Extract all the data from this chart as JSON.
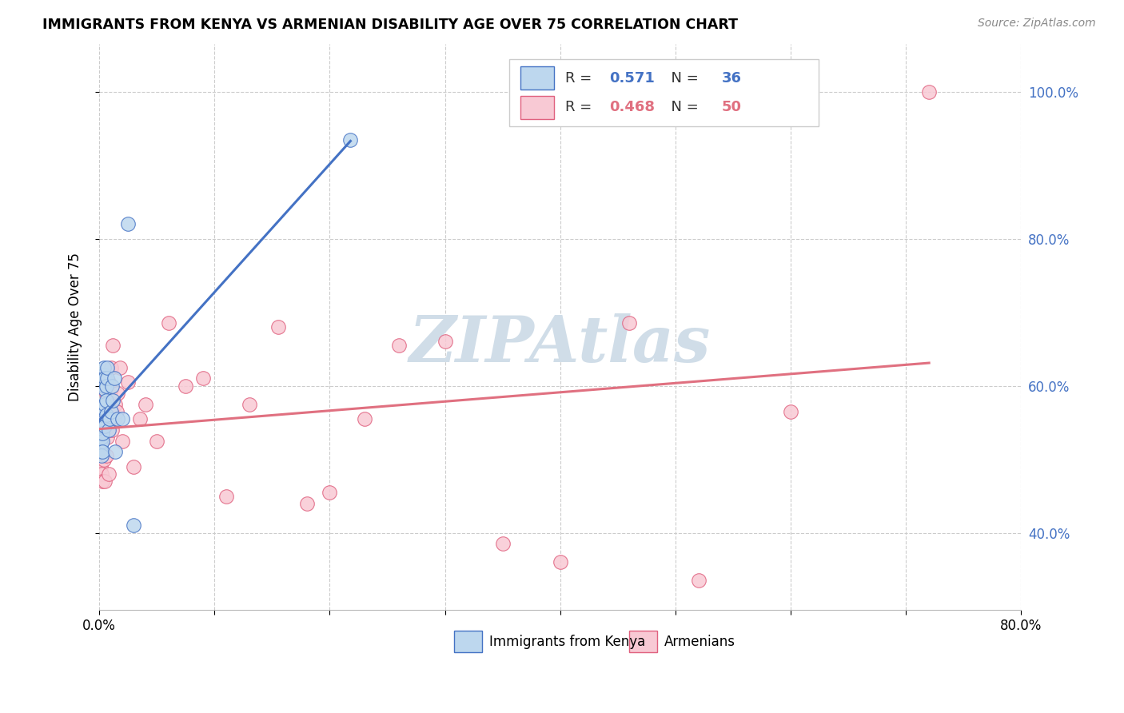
{
  "title": "IMMIGRANTS FROM KENYA VS ARMENIAN DISABILITY AGE OVER 75 CORRELATION CHART",
  "source": "Source: ZipAtlas.com",
  "ylabel": "Disability Age Over 75",
  "x_min": 0.0,
  "x_max": 0.8,
  "y_min": 0.295,
  "y_max": 1.065,
  "right_yticks": [
    0.4,
    0.6,
    0.8,
    1.0
  ],
  "kenya_R": 0.571,
  "kenya_N": 36,
  "armenian_R": 0.468,
  "armenian_N": 50,
  "kenya_fill": "#bdd7ee",
  "kenya_edge": "#4472c4",
  "armenian_fill": "#f8c9d4",
  "armenian_edge": "#e0607e",
  "trend_kenya": "#4472c4",
  "trend_armenian": "#e07080",
  "legend_text_kenya": "#4472c4",
  "legend_text_armenian": "#e07080",
  "background_color": "#ffffff",
  "grid_color": "#cccccc",
  "watermark_text": "ZIPAtlas",
  "watermark_color": "#d0dde8",
  "kenya_x": [
    0.001,
    0.001,
    0.001,
    0.002,
    0.002,
    0.002,
    0.002,
    0.003,
    0.003,
    0.003,
    0.003,
    0.003,
    0.004,
    0.004,
    0.004,
    0.005,
    0.005,
    0.005,
    0.005,
    0.006,
    0.006,
    0.006,
    0.007,
    0.007,
    0.008,
    0.009,
    0.01,
    0.011,
    0.012,
    0.013,
    0.014,
    0.016,
    0.02,
    0.025,
    0.218,
    0.03
  ],
  "kenya_y": [
    0.515,
    0.52,
    0.51,
    0.53,
    0.54,
    0.505,
    0.545,
    0.525,
    0.535,
    0.56,
    0.51,
    0.57,
    0.6,
    0.615,
    0.625,
    0.545,
    0.575,
    0.595,
    0.61,
    0.56,
    0.58,
    0.6,
    0.61,
    0.625,
    0.54,
    0.555,
    0.565,
    0.6,
    0.58,
    0.61,
    0.51,
    0.555,
    0.555,
    0.82,
    0.935,
    0.41
  ],
  "armenian_x": [
    0.001,
    0.001,
    0.002,
    0.002,
    0.003,
    0.003,
    0.003,
    0.004,
    0.004,
    0.005,
    0.005,
    0.006,
    0.006,
    0.007,
    0.007,
    0.008,
    0.008,
    0.009,
    0.01,
    0.01,
    0.011,
    0.012,
    0.013,
    0.014,
    0.015,
    0.016,
    0.018,
    0.02,
    0.025,
    0.03,
    0.035,
    0.04,
    0.05,
    0.06,
    0.075,
    0.09,
    0.11,
    0.13,
    0.155,
    0.18,
    0.2,
    0.23,
    0.26,
    0.3,
    0.35,
    0.4,
    0.46,
    0.52,
    0.6,
    0.72
  ],
  "armenian_y": [
    0.49,
    0.51,
    0.53,
    0.48,
    0.55,
    0.505,
    0.47,
    0.56,
    0.5,
    0.535,
    0.47,
    0.59,
    0.505,
    0.565,
    0.53,
    0.605,
    0.48,
    0.545,
    0.595,
    0.625,
    0.54,
    0.655,
    0.555,
    0.575,
    0.565,
    0.59,
    0.625,
    0.525,
    0.605,
    0.49,
    0.555,
    0.575,
    0.525,
    0.685,
    0.6,
    0.61,
    0.45,
    0.575,
    0.68,
    0.44,
    0.455,
    0.555,
    0.655,
    0.66,
    0.385,
    0.36,
    0.685,
    0.335,
    0.565,
    1.0
  ],
  "kenya_trend_x": [
    0.001,
    0.218
  ],
  "armenian_trend_x": [
    0.001,
    0.72
  ]
}
